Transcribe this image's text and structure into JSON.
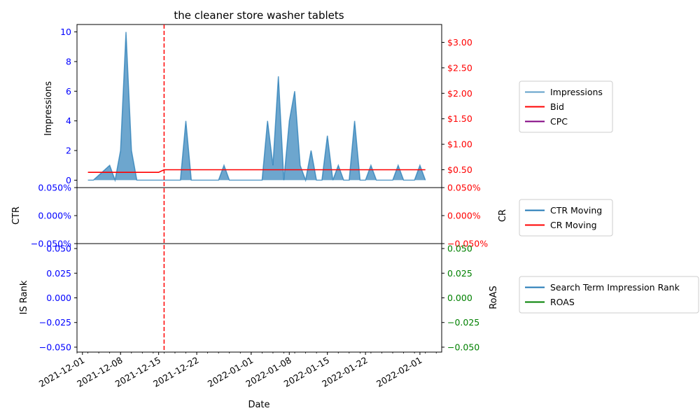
{
  "chart_data": [
    {
      "type": "area",
      "title": "the cleaner store washer tablets",
      "ylabel": "Impressions",
      "xlim": [
        "2021-11-30",
        "2022-02-05"
      ],
      "ylim": [
        -0.5,
        10.5
      ],
      "yticks": [
        0,
        2,
        4,
        6,
        8,
        10
      ],
      "y2lim": [
        0.15,
        3.35
      ],
      "y2ticks": [
        0.5,
        1.0,
        1.5,
        2.0,
        2.5,
        3.0
      ],
      "y2tick_labels": [
        "$0.50",
        "$1.00",
        "$1.50",
        "$2.00",
        "$2.50",
        "$3.00"
      ],
      "legend_position": "outside-right",
      "vline": {
        "x": "2021-12-16",
        "color": "#ff0000",
        "style": "dashed"
      },
      "series": [
        {
          "name": "Impressions",
          "color": "#1f77b4",
          "points": [
            [
              "2021-12-02",
              0
            ],
            [
              "2021-12-03",
              0
            ],
            [
              "2021-12-06",
              1
            ],
            [
              "2021-12-07",
              0
            ],
            [
              "2021-12-08",
              2
            ],
            [
              "2021-12-09",
              10
            ],
            [
              "2021-12-10",
              2
            ],
            [
              "2021-12-11",
              0
            ],
            [
              "2021-12-19",
              0
            ],
            [
              "2021-12-20",
              4
            ],
            [
              "2021-12-21",
              0
            ],
            [
              "2021-12-26",
              0
            ],
            [
              "2021-12-27",
              1
            ],
            [
              "2021-12-28",
              0
            ],
            [
              "2022-01-03",
              0
            ],
            [
              "2022-01-04",
              4
            ],
            [
              "2022-01-05",
              1
            ],
            [
              "2022-01-06",
              7
            ],
            [
              "2022-01-07",
              0
            ],
            [
              "2022-01-08",
              4
            ],
            [
              "2022-01-09",
              6
            ],
            [
              "2022-01-10",
              1
            ],
            [
              "2022-01-11",
              0
            ],
            [
              "2022-01-12",
              2
            ],
            [
              "2022-01-13",
              0
            ],
            [
              "2022-01-14",
              0
            ],
            [
              "2022-01-15",
              3
            ],
            [
              "2022-01-16",
              0
            ],
            [
              "2022-01-17",
              1
            ],
            [
              "2022-01-18",
              0
            ],
            [
              "2022-01-19",
              0
            ],
            [
              "2022-01-20",
              4
            ],
            [
              "2022-01-21",
              0
            ],
            [
              "2022-01-22",
              0
            ],
            [
              "2022-01-23",
              1
            ],
            [
              "2022-01-24",
              0
            ],
            [
              "2022-01-27",
              0
            ],
            [
              "2022-01-28",
              1
            ],
            [
              "2022-01-29",
              0
            ],
            [
              "2022-01-31",
              0
            ],
            [
              "2022-02-01",
              1
            ],
            [
              "2022-02-02",
              0
            ]
          ]
        },
        {
          "name": "Bid",
          "color": "#ff0000",
          "axis": "right",
          "points": [
            [
              "2021-12-02",
              0.45
            ],
            [
              "2021-12-15",
              0.45
            ],
            [
              "2021-12-16",
              0.5
            ],
            [
              "2022-02-02",
              0.5
            ]
          ]
        },
        {
          "name": "CPC",
          "color": "#800080",
          "axis": "right",
          "points": []
        }
      ]
    },
    {
      "type": "line",
      "ylabel": "CTR",
      "y2label": "CR",
      "ylim": [
        -0.0005,
        0.0005
      ],
      "yticks": [
        -0.0005,
        0,
        0.0005
      ],
      "ytick_labels": [
        "−0.050%",
        "0.000%",
        "0.050%"
      ],
      "y2ticks": [
        -0.0005,
        0,
        0.0005
      ],
      "y2tick_labels": [
        "−0.050%",
        "0.000%",
        "0.050%"
      ],
      "legend_position": "outside-right",
      "series": [
        {
          "name": "CTR Moving",
          "color": "#1f77b4",
          "points": []
        },
        {
          "name": "CR Moving",
          "color": "#ff0000",
          "axis": "right",
          "points": []
        }
      ]
    },
    {
      "type": "line",
      "ylabel": "IS Rank",
      "y2label": "RoAS",
      "xlabel": "Date",
      "ylim": [
        -0.055,
        0.055
      ],
      "yticks": [
        -0.05,
        -0.025,
        0,
        0.025,
        0.05
      ],
      "ytick_labels": [
        "−0.050",
        "−0.025",
        "0.000",
        "0.025",
        "0.050"
      ],
      "y2ticks": [
        -0.05,
        -0.025,
        0,
        0.025,
        0.05
      ],
      "y2tick_labels": [
        "−0.050",
        "−0.025",
        "0.000",
        "0.025",
        "0.050"
      ],
      "xticks": [
        "2021-12-01",
        "2021-12-08",
        "2021-12-15",
        "2021-12-22",
        "2022-01-01",
        "2022-01-08",
        "2022-01-15",
        "2022-01-22",
        "2022-02-01"
      ],
      "legend_position": "outside-right",
      "series": [
        {
          "name": "Search Term Impression Rank",
          "color": "#1f77b4",
          "points": []
        },
        {
          "name": "ROAS",
          "color": "#008000",
          "axis": "right",
          "points": []
        }
      ]
    }
  ],
  "colors": {
    "left_axis": "#0000ff",
    "right_axis_top": "#ff0000",
    "right_axis_bottom": "#008000"
  }
}
